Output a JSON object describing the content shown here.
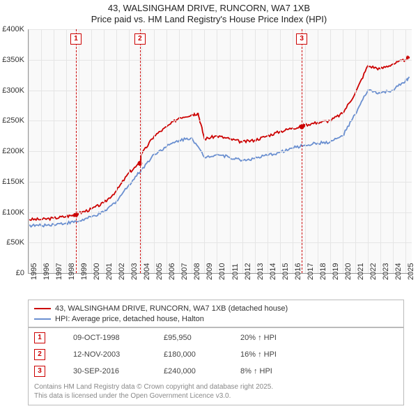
{
  "title": {
    "line1": "43, WALSINGHAM DRIVE, RUNCORN, WA7 1XB",
    "line2": "Price paid vs. HM Land Registry's House Price Index (HPI)"
  },
  "chart": {
    "type": "line",
    "background_color": "#f9f9f9",
    "grid_color": "#e5e5e5",
    "ylim": [
      0,
      400000
    ],
    "ytick_step": 50000,
    "ytick_labels": [
      "£0",
      "£50K",
      "£100K",
      "£150K",
      "£200K",
      "£250K",
      "£300K",
      "£350K",
      "£400K"
    ],
    "xlim": [
      1995,
      2025.5
    ],
    "xticks": [
      1995,
      1996,
      1997,
      1998,
      1999,
      2000,
      2001,
      2002,
      2003,
      2004,
      2005,
      2006,
      2007,
      2008,
      2009,
      2010,
      2011,
      2012,
      2013,
      2014,
      2015,
      2016,
      2017,
      2018,
      2019,
      2020,
      2021,
      2022,
      2023,
      2024,
      2025
    ],
    "series": [
      {
        "name": "43, WALSINGHAM DRIVE, RUNCORN, WA7 1XB (detached house)",
        "color": "#cc0000",
        "line_width": 1.8,
        "x": [
          1995,
          1996,
          1997,
          1998,
          1998.77,
          1999,
          2000,
          2001,
          2002,
          2003,
          2003.87,
          2004,
          2005,
          2006,
          2007,
          2008,
          2008.5,
          2009,
          2010,
          2011,
          2012,
          2013,
          2014,
          2015,
          2016,
          2016.75,
          2017,
          2018,
          2019,
          2020,
          2021,
          2022,
          2023,
          2024,
          2025,
          2025.3
        ],
        "y": [
          88000,
          88000,
          90000,
          93000,
          95950,
          98000,
          105000,
          115000,
          135000,
          165000,
          180000,
          195000,
          225000,
          240000,
          255000,
          260000,
          262000,
          220000,
          225000,
          220000,
          215000,
          218000,
          225000,
          232000,
          238000,
          240000,
          243000,
          247000,
          250000,
          262000,
          295000,
          340000,
          335000,
          343000,
          350000,
          355000
        ]
      },
      {
        "name": "HPI: Average price, detached house, Halton",
        "color": "#6a8fd0",
        "line_width": 1.8,
        "x": [
          1995,
          1996,
          1997,
          1998,
          1999,
          2000,
          2001,
          2002,
          2003,
          2004,
          2005,
          2006,
          2007,
          2008,
          2009,
          2010,
          2011,
          2012,
          2013,
          2014,
          2015,
          2016,
          2017,
          2018,
          2019,
          2020,
          2021,
          2022,
          2023,
          2024,
          2025,
          2025.3
        ],
        "y": [
          78000,
          78000,
          80000,
          82000,
          85000,
          92000,
          100000,
          118000,
          145000,
          170000,
          195000,
          208000,
          218000,
          222000,
          190000,
          195000,
          190000,
          185000,
          188000,
          193000,
          198000,
          205000,
          210000,
          213000,
          215000,
          225000,
          260000,
          300000,
          295000,
          300000,
          315000,
          320000
        ]
      }
    ],
    "markers": [
      {
        "num": "1",
        "x": 1998.77,
        "color": "#cc0000"
      },
      {
        "num": "2",
        "x": 2003.87,
        "color": "#cc0000"
      },
      {
        "num": "3",
        "x": 2016.75,
        "color": "#cc0000"
      }
    ]
  },
  "legend": {
    "items": [
      {
        "label": "43, WALSINGHAM DRIVE, RUNCORN, WA7 1XB (detached house)",
        "color": "#cc0000"
      },
      {
        "label": "HPI: Average price, detached house, Halton",
        "color": "#6a8fd0"
      }
    ]
  },
  "events": [
    {
      "num": "1",
      "color": "#cc0000",
      "date": "09-OCT-1998",
      "price": "£95,950",
      "hpi": "20% ↑ HPI"
    },
    {
      "num": "2",
      "color": "#cc0000",
      "date": "12-NOV-2003",
      "price": "£180,000",
      "hpi": "16% ↑ HPI"
    },
    {
      "num": "3",
      "color": "#cc0000",
      "date": "30-SEP-2016",
      "price": "£240,000",
      "hpi": "8% ↑ HPI"
    }
  ],
  "attribution": {
    "line1": "Contains HM Land Registry data © Crown copyright and database right 2025.",
    "line2": "This data is licensed under the Open Government Licence v3.0."
  }
}
